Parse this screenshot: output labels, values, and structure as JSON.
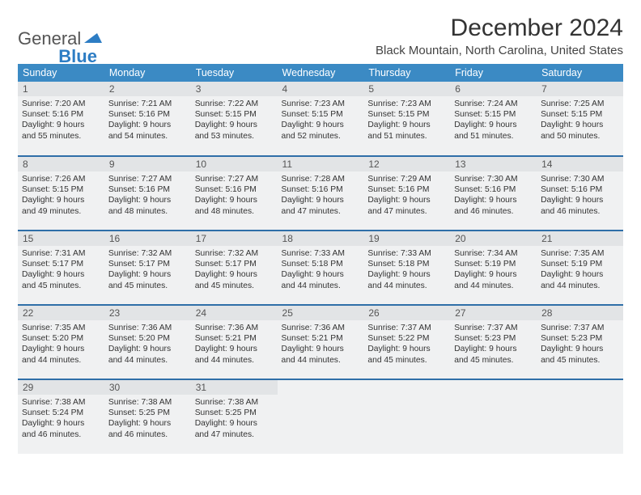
{
  "logo": {
    "word1": "General",
    "word2": "Blue"
  },
  "title": "December 2024",
  "location": "Black Mountain, North Carolina, United States",
  "colors": {
    "header_bg": "#3b8ac4",
    "header_text": "#ffffff",
    "cell_bg": "#f0f1f2",
    "daynum_bg": "#e2e4e6",
    "row_divider": "#2f6fa8",
    "logo_blue": "#2d7dc4"
  },
  "dow": [
    "Sunday",
    "Monday",
    "Tuesday",
    "Wednesday",
    "Thursday",
    "Friday",
    "Saturday"
  ],
  "weeks": [
    [
      {
        "n": "1",
        "sr": "7:20 AM",
        "ss": "5:16 PM",
        "dl": "9 hours and 55 minutes."
      },
      {
        "n": "2",
        "sr": "7:21 AM",
        "ss": "5:16 PM",
        "dl": "9 hours and 54 minutes."
      },
      {
        "n": "3",
        "sr": "7:22 AM",
        "ss": "5:15 PM",
        "dl": "9 hours and 53 minutes."
      },
      {
        "n": "4",
        "sr": "7:23 AM",
        "ss": "5:15 PM",
        "dl": "9 hours and 52 minutes."
      },
      {
        "n": "5",
        "sr": "7:23 AM",
        "ss": "5:15 PM",
        "dl": "9 hours and 51 minutes."
      },
      {
        "n": "6",
        "sr": "7:24 AM",
        "ss": "5:15 PM",
        "dl": "9 hours and 51 minutes."
      },
      {
        "n": "7",
        "sr": "7:25 AM",
        "ss": "5:15 PM",
        "dl": "9 hours and 50 minutes."
      }
    ],
    [
      {
        "n": "8",
        "sr": "7:26 AM",
        "ss": "5:15 PM",
        "dl": "9 hours and 49 minutes."
      },
      {
        "n": "9",
        "sr": "7:27 AM",
        "ss": "5:16 PM",
        "dl": "9 hours and 48 minutes."
      },
      {
        "n": "10",
        "sr": "7:27 AM",
        "ss": "5:16 PM",
        "dl": "9 hours and 48 minutes."
      },
      {
        "n": "11",
        "sr": "7:28 AM",
        "ss": "5:16 PM",
        "dl": "9 hours and 47 minutes."
      },
      {
        "n": "12",
        "sr": "7:29 AM",
        "ss": "5:16 PM",
        "dl": "9 hours and 47 minutes."
      },
      {
        "n": "13",
        "sr": "7:30 AM",
        "ss": "5:16 PM",
        "dl": "9 hours and 46 minutes."
      },
      {
        "n": "14",
        "sr": "7:30 AM",
        "ss": "5:16 PM",
        "dl": "9 hours and 46 minutes."
      }
    ],
    [
      {
        "n": "15",
        "sr": "7:31 AM",
        "ss": "5:17 PM",
        "dl": "9 hours and 45 minutes."
      },
      {
        "n": "16",
        "sr": "7:32 AM",
        "ss": "5:17 PM",
        "dl": "9 hours and 45 minutes."
      },
      {
        "n": "17",
        "sr": "7:32 AM",
        "ss": "5:17 PM",
        "dl": "9 hours and 45 minutes."
      },
      {
        "n": "18",
        "sr": "7:33 AM",
        "ss": "5:18 PM",
        "dl": "9 hours and 44 minutes."
      },
      {
        "n": "19",
        "sr": "7:33 AM",
        "ss": "5:18 PM",
        "dl": "9 hours and 44 minutes."
      },
      {
        "n": "20",
        "sr": "7:34 AM",
        "ss": "5:19 PM",
        "dl": "9 hours and 44 minutes."
      },
      {
        "n": "21",
        "sr": "7:35 AM",
        "ss": "5:19 PM",
        "dl": "9 hours and 44 minutes."
      }
    ],
    [
      {
        "n": "22",
        "sr": "7:35 AM",
        "ss": "5:20 PM",
        "dl": "9 hours and 44 minutes."
      },
      {
        "n": "23",
        "sr": "7:36 AM",
        "ss": "5:20 PM",
        "dl": "9 hours and 44 minutes."
      },
      {
        "n": "24",
        "sr": "7:36 AM",
        "ss": "5:21 PM",
        "dl": "9 hours and 44 minutes."
      },
      {
        "n": "25",
        "sr": "7:36 AM",
        "ss": "5:21 PM",
        "dl": "9 hours and 44 minutes."
      },
      {
        "n": "26",
        "sr": "7:37 AM",
        "ss": "5:22 PM",
        "dl": "9 hours and 45 minutes."
      },
      {
        "n": "27",
        "sr": "7:37 AM",
        "ss": "5:23 PM",
        "dl": "9 hours and 45 minutes."
      },
      {
        "n": "28",
        "sr": "7:37 AM",
        "ss": "5:23 PM",
        "dl": "9 hours and 45 minutes."
      }
    ],
    [
      {
        "n": "29",
        "sr": "7:38 AM",
        "ss": "5:24 PM",
        "dl": "9 hours and 46 minutes."
      },
      {
        "n": "30",
        "sr": "7:38 AM",
        "ss": "5:25 PM",
        "dl": "9 hours and 46 minutes."
      },
      {
        "n": "31",
        "sr": "7:38 AM",
        "ss": "5:25 PM",
        "dl": "9 hours and 47 minutes."
      },
      null,
      null,
      null,
      null
    ]
  ],
  "labels": {
    "sunrise": "Sunrise:",
    "sunset": "Sunset:",
    "daylight": "Daylight:"
  }
}
